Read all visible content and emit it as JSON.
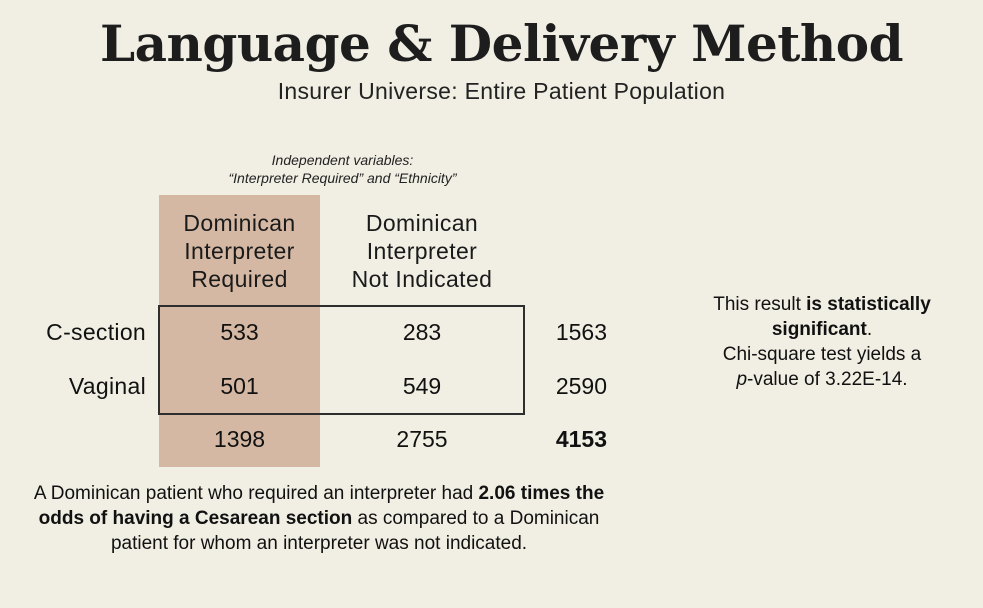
{
  "title": "Language & Delivery Method",
  "subtitle": "Insurer Universe: Entire Patient Population",
  "independent_variables": {
    "line1": "Independent variables:",
    "line2": "“Interpreter Required” and “Ethnicity”"
  },
  "table": {
    "columns": [
      {
        "line1": "Dominican",
        "line2": "Interpreter",
        "line3": "Required"
      },
      {
        "line1": "Dominican",
        "line2": "Interpreter",
        "line3": "Not Indicated"
      }
    ],
    "rows": [
      {
        "label": "C-section",
        "values": [
          "533",
          "283"
        ],
        "total": "1563"
      },
      {
        "label": "Vaginal",
        "values": [
          "501",
          "549"
        ],
        "total": "2590"
      }
    ],
    "column_totals": [
      "1398",
      "2755"
    ],
    "grand_total": "4153"
  },
  "result_note": {
    "prefix": "This result ",
    "bold": "is statistically significant",
    "suffix": ".",
    "line3": "Chi-square test yields a",
    "p_italic": "p",
    "p_rest": "-value of 3.22E-14."
  },
  "odds_note": {
    "part1": "A Dominican patient who required an interpreter had ",
    "bold": "2.06 times the odds of having a Cesarean section",
    "part2": " as compared to a Dominican patient for whom an interpreter was not indicated."
  },
  "colors": {
    "background": "#f1eee3",
    "highlight_column": "#d4b8a3",
    "border": "#2e2e2e"
  }
}
